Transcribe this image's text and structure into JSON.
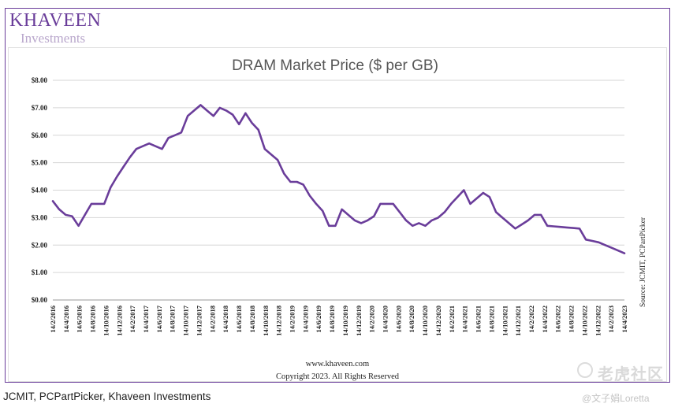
{
  "brand": {
    "name": "KHAVEEN",
    "sub": "Investments"
  },
  "footer": {
    "site": "www.khaveen.com",
    "copyright": "Copyright 2023. All Rights Reserved"
  },
  "caption": "JCMIT, PCPartPicker, Khaveen Investments",
  "watermark": {
    "site": "老虎社区",
    "author": "@文子娟Loretta"
  },
  "colors": {
    "line": "#6a3d9a",
    "frame": "#6a3d9a",
    "grid": "#d6d6d6"
  },
  "chart_data": {
    "type": "line",
    "title": "DRAM Market Price ($ per GB)",
    "xlabel": "",
    "ylabel": "",
    "source_label": "Source: JCMIT, PCPartPicker",
    "ylim": [
      0,
      8
    ],
    "y_ticks": [
      "$0.00",
      "$1.00",
      "$2.00",
      "$3.00",
      "$4.00",
      "$5.00",
      "$6.00",
      "$7.00",
      "$8.00"
    ],
    "grid": "horizontal",
    "x_tick_labels": [
      "14/2/2016",
      "14/4/2016",
      "14/6/2016",
      "14/8/2016",
      "14/10/2016",
      "14/12/2016",
      "14/2/2017",
      "14/4/2017",
      "14/6/2017",
      "14/8/2017",
      "14/10/2017",
      "14/12/2017",
      "14/2/2018",
      "14/4/2018",
      "14/6/2018",
      "14/8/2018",
      "14/10/2018",
      "14/12/2018",
      "14/2/2019",
      "14/4/2019",
      "14/6/2019",
      "14/8/2019",
      "14/10/2019",
      "14/12/2019",
      "14/2/2020",
      "14/4/2020",
      "14/6/2020",
      "14/8/2020",
      "14/10/2020",
      "14/12/2020",
      "14/2/2021",
      "14/4/2021",
      "14/6/2021",
      "14/8/2021",
      "14/10/2021",
      "14/12/2021",
      "14/2/2022",
      "14/4/2022",
      "14/6/2022",
      "14/8/2022",
      "14/10/2022",
      "14/12/2022",
      "14/2/2023",
      "14/4/2023"
    ],
    "series": [
      {
        "values": [
          3.6,
          3.3,
          3.1,
          3.05,
          2.7,
          3.1,
          3.5,
          3.5,
          3.5,
          4.1,
          4.5,
          4.85,
          5.2,
          5.5,
          5.6,
          5.7,
          5.6,
          5.5,
          5.9,
          6.0,
          6.1,
          6.7,
          6.9,
          7.1,
          6.9,
          6.7,
          7.0,
          6.9,
          6.75,
          6.4,
          6.8,
          6.45,
          6.2,
          5.5,
          5.3,
          5.1,
          4.6,
          4.3,
          4.3,
          4.2,
          3.8,
          3.5,
          3.25,
          2.7,
          2.7,
          3.3,
          3.1,
          2.9,
          2.8,
          2.9,
          3.05,
          3.5,
          3.5,
          3.5,
          3.2,
          2.9,
          2.7,
          2.8,
          2.7,
          2.9,
          3.0,
          3.2,
          3.5,
          3.75,
          4.0,
          3.5,
          3.7,
          3.9,
          3.75,
          3.2,
          3.0,
          2.8,
          2.6,
          2.75,
          2.9,
          3.1,
          3.1,
          2.7,
          2.68,
          2.66,
          2.64,
          2.62,
          2.6,
          2.2,
          2.15,
          2.1,
          2.0,
          1.9,
          1.8,
          1.7
        ]
      }
    ]
  }
}
